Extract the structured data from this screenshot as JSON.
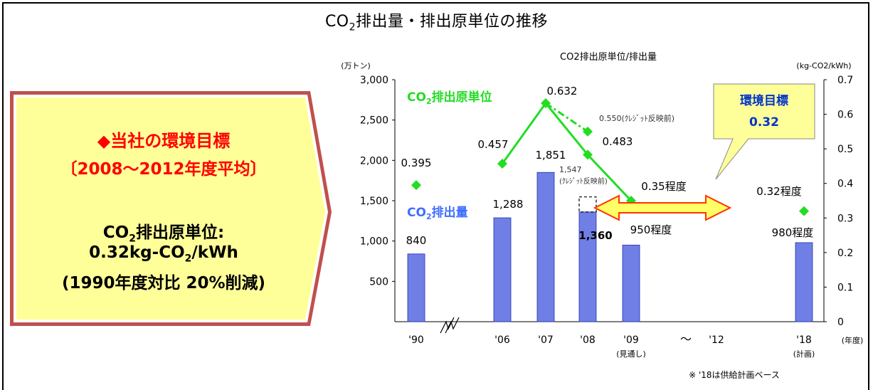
{
  "main_title": {
    "prefix": "CO",
    "sub": "2",
    "suffix": "排出量・排出原単位の推移"
  },
  "sidebar": {
    "heading1": "◆当社の環境目標",
    "heading2": "〔2008〜2012年度平均〕",
    "line1_prefix": "CO",
    "line1_sub": "2",
    "line1_suffix": "排出原単位:",
    "line2_prefix": "0.32kg-CO",
    "line2_sub": "2",
    "line2_suffix": "/kWh",
    "line3": "(1990年度対比 20%削減)",
    "colors": {
      "fill": "#ffff99",
      "border": "#c0504d",
      "heading": "#ff0000"
    }
  },
  "chart_data": {
    "type": "bar",
    "title": "CO2排出原単位/排出量",
    "left_unit": "(万トン)",
    "right_unit": "(kg-CO2/kWh)",
    "year_unit": "(年度)",
    "categories": [
      "'90",
      "'06",
      "'07",
      "'08",
      "'09",
      "'12",
      "'18"
    ],
    "category_notes": {
      "'09": "(見通し)",
      "'18": "(計画)"
    },
    "tilde": "〜",
    "left_ticks": [
      "3,000",
      "2,500",
      "2,000",
      "1,500",
      "1,000",
      "500"
    ],
    "right_ticks": [
      "0.7",
      "0.6",
      "0.5",
      "0.4",
      "0.3",
      "0.2",
      "0.1",
      "0"
    ],
    "ylim_left": [
      0,
      3000
    ],
    "ylim_right": [
      0,
      0.7
    ],
    "emissions": {
      "name": "CO2排出量",
      "values": [
        {
          "x": "'90",
          "y": 840,
          "label": "840"
        },
        {
          "x": "'06",
          "y": 1288,
          "label": "1,288"
        },
        {
          "x": "'07",
          "y": 1851,
          "label": "1,851"
        },
        {
          "x": "'08",
          "y": 1360,
          "label": "1,360"
        },
        {
          "x": "'09",
          "y": 950,
          "label": "950程度"
        },
        {
          "x": "'18",
          "y": 980,
          "label": "980程度"
        }
      ],
      "credit_box": {
        "x": "'08",
        "y": 1547,
        "label_value": "1,547",
        "label_note": "(ｸﾚｼﾞｯﾄ反映前)"
      }
    },
    "intensity": {
      "name": "CO2排出原単位",
      "values": [
        {
          "x": "'90",
          "y": 0.395,
          "label": "0.395"
        },
        {
          "x": "'06",
          "y": 0.457,
          "label": "0.457"
        },
        {
          "x": "'07",
          "y": 0.632,
          "label": "0.632"
        },
        {
          "x": "'08",
          "y": 0.483,
          "label": "0.483"
        },
        {
          "x": "'09",
          "y": 0.35,
          "label": "0.35程度"
        },
        {
          "x": "'18",
          "y": 0.32,
          "label": "0.32程度"
        }
      ],
      "credit_point": {
        "x": "'08",
        "y": 0.55,
        "label": "0.550(ｸﾚｼﾞｯﾄ反映前)"
      }
    },
    "legend_intensity": {
      "prefix": "CO",
      "sub": "2",
      "suffix": "排出原単位"
    },
    "legend_emissions": {
      "prefix": "CO",
      "sub": "2",
      "suffix": "排出量"
    },
    "target_callout": {
      "line1": "環境目標",
      "line2": "0.32"
    },
    "footnote": "※ '18は供給計画ベース",
    "colors": {
      "bar": "#6f7fe6",
      "intensity": "#22dd22",
      "legend_emissions": "#3f6fff",
      "callout_text": "#0033cc",
      "callout_fill": "#ffff99",
      "arrow_fill": "#ffff66",
      "arrow_stroke": "#ff3300"
    }
  }
}
